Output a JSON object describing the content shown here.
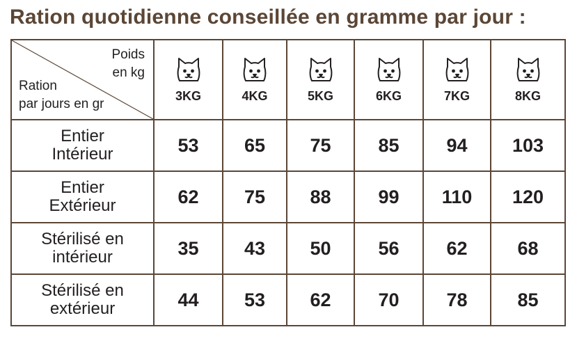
{
  "title": "Ration quotidienne conseillée en gramme par jour :",
  "corner": {
    "poids_line1": "Poids",
    "poids_line2": "en kg",
    "ration_line1": "Ration",
    "ration_line2": "par jours en gr"
  },
  "icon": "cat-face-icon",
  "weights": [
    "3KG",
    "4KG",
    "5KG",
    "6KG",
    "7KG",
    "8KG"
  ],
  "rows": [
    {
      "label_line1": "Entier",
      "label_line2": "Intérieur",
      "values": [
        "53",
        "65",
        "75",
        "85",
        "94",
        "103"
      ]
    },
    {
      "label_line1": "Entier",
      "label_line2": "Extérieur",
      "values": [
        "62",
        "75",
        "88",
        "99",
        "110",
        "120"
      ]
    },
    {
      "label_line1": "Stérilisé en",
      "label_line2": "intérieur",
      "values": [
        "35",
        "43",
        "50",
        "56",
        "62",
        "68"
      ]
    },
    {
      "label_line1": "Stérilisé en",
      "label_line2": "extérieur",
      "values": [
        "44",
        "53",
        "62",
        "70",
        "78",
        "85"
      ]
    }
  ],
  "colors": {
    "title": "#5b4636",
    "border": "#5b4636",
    "text": "#231f20"
  }
}
